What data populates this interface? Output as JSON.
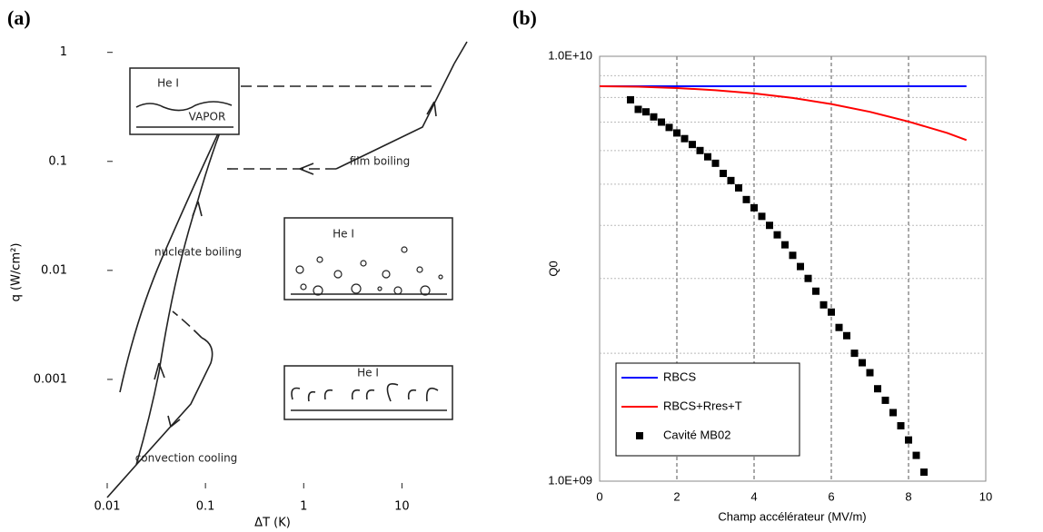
{
  "chart_data": [
    {
      "type": "line",
      "panel_label": "(a)",
      "x_label": "ΔT (K)",
      "y_label": "q (W/cm²)",
      "xlog": true,
      "ylog": true,
      "xlim": [
        0.01,
        50
      ],
      "ylim": [
        0.0001,
        1.3
      ],
      "xticks": [
        0.01,
        0.1,
        1,
        10
      ],
      "yticks": [
        0.001,
        0.01,
        0.1,
        1
      ],
      "annotations": [
        "He I",
        "VAPOR",
        "film boiling",
        "He I",
        "nucleate boiling",
        "He I",
        "convection cooling"
      ]
    },
    {
      "type": "line",
      "panel_label": "(b)",
      "x_label": "Champ accélérateur (MV/m)",
      "y_label": "Q0",
      "ylog": true,
      "xlim": [
        0,
        10
      ],
      "ylim": [
        1000000000,
        10000000000
      ],
      "xticks": [
        0,
        2,
        4,
        6,
        8,
        10
      ],
      "yticks": [
        {
          "value": 1000000000,
          "label": "1.0E+09"
        },
        {
          "value": 10000000000,
          "label": "1.0E+10"
        }
      ],
      "yminor": [
        2000000000,
        3000000000,
        4000000000,
        5000000000,
        6000000000,
        7000000000,
        8000000000,
        9000000000
      ],
      "grid": true,
      "legend": "lower left",
      "series": [
        {
          "name": "RBCS",
          "color": "#0000ff",
          "marker": "line",
          "x": [
            0,
            9.5
          ],
          "values": [
            8500000000,
            8500000000
          ]
        },
        {
          "name": "RBCS+Rres+T",
          "color": "#ff0000",
          "marker": "line",
          "x": [
            0,
            1,
            2,
            3,
            4,
            5,
            6,
            7,
            8,
            9,
            9.5
          ],
          "values": [
            8500000000,
            8480000000,
            8420000000,
            8320000000,
            8180000000,
            7980000000,
            7720000000,
            7400000000,
            7020000000,
            6600000000,
            6350000000
          ]
        },
        {
          "name": "Cavité MB02",
          "color": "#000000",
          "marker": "square",
          "x": [
            0.8,
            1.0,
            1.2,
            1.4,
            1.6,
            1.8,
            2.0,
            2.2,
            2.4,
            2.6,
            2.8,
            3.0,
            3.2,
            3.4,
            3.6,
            3.8,
            4.0,
            4.2,
            4.4,
            4.6,
            4.8,
            5.0,
            5.2,
            5.4,
            5.6,
            5.8,
            6.0,
            6.2,
            6.4,
            6.6,
            6.8,
            7.0,
            7.2,
            7.4,
            7.6,
            7.8,
            8.0,
            8.2,
            8.4
          ],
          "values": [
            7900000000,
            7500000000,
            7400000000,
            7200000000,
            7000000000,
            6800000000,
            6600000000,
            6400000000,
            6200000000,
            6000000000,
            5800000000,
            5600000000,
            5300000000,
            5100000000,
            4900000000,
            4600000000,
            4400000000,
            4200000000,
            4000000000,
            3800000000,
            3600000000,
            3400000000,
            3200000000,
            3000000000,
            2800000000,
            2600000000,
            2500000000,
            2300000000,
            2200000000,
            2000000000,
            1900000000,
            1800000000,
            1650000000,
            1550000000,
            1450000000,
            1350000000,
            1250000000,
            1150000000,
            1050000000
          ]
        }
      ]
    }
  ]
}
